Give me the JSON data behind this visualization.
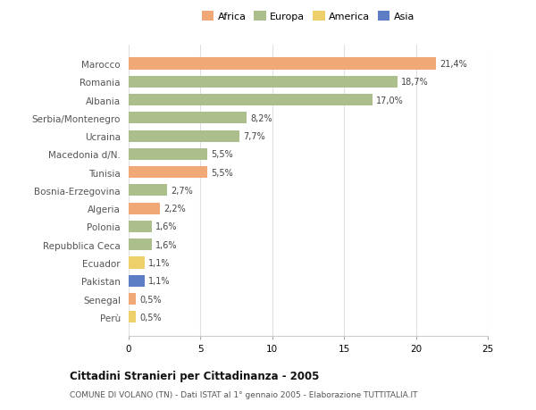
{
  "countries": [
    "Marocco",
    "Romania",
    "Albania",
    "Serbia/Montenegro",
    "Ucraina",
    "Macedonia d/N.",
    "Tunisia",
    "Bosnia-Erzegovina",
    "Algeria",
    "Polonia",
    "Repubblica Ceca",
    "Ecuador",
    "Pakistan",
    "Senegal",
    "Perù"
  ],
  "values": [
    21.4,
    18.7,
    17.0,
    8.2,
    7.7,
    5.5,
    5.5,
    2.7,
    2.2,
    1.6,
    1.6,
    1.1,
    1.1,
    0.5,
    0.5
  ],
  "labels": [
    "21,4%",
    "18,7%",
    "17,0%",
    "8,2%",
    "7,7%",
    "5,5%",
    "5,5%",
    "2,7%",
    "2,2%",
    "1,6%",
    "1,6%",
    "1,1%",
    "1,1%",
    "0,5%",
    "0,5%"
  ],
  "continents": [
    "Africa",
    "Europa",
    "Europa",
    "Europa",
    "Europa",
    "Europa",
    "Africa",
    "Europa",
    "Africa",
    "Europa",
    "Europa",
    "America",
    "Asia",
    "Africa",
    "America"
  ],
  "colors": {
    "Africa": "#F0A876",
    "Europa": "#ABBE8C",
    "America": "#EDD06A",
    "Asia": "#5D7EC4"
  },
  "title": "Cittadini Stranieri per Cittadinanza - 2005",
  "subtitle": "COMUNE DI VOLANO (TN) - Dati ISTAT al 1° gennaio 2005 - Elaborazione TUTTITALIA.IT",
  "xlim": [
    0,
    25
  ],
  "xticks": [
    0,
    5,
    10,
    15,
    20,
    25
  ],
  "background_color": "#ffffff",
  "grid_color": "#e0e0e0"
}
